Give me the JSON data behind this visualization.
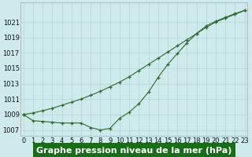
{
  "line1_x": [
    0,
    1,
    2,
    3,
    4,
    5,
    6,
    7,
    8,
    9,
    10,
    11,
    12,
    13,
    14,
    15,
    16,
    17,
    18,
    19,
    20,
    21,
    22,
    23
  ],
  "line1_y": [
    1009.0,
    1009.2,
    1009.5,
    1009.8,
    1010.2,
    1010.6,
    1011.0,
    1011.5,
    1012.0,
    1012.6,
    1013.2,
    1013.9,
    1014.7,
    1015.5,
    1016.3,
    1017.1,
    1017.9,
    1018.7,
    1019.5,
    1020.3,
    1021.0,
    1021.5,
    1022.0,
    1022.5
  ],
  "line2_x": [
    0,
    1,
    2,
    3,
    4,
    5,
    6,
    7,
    8,
    9,
    10,
    11,
    12,
    13,
    14,
    15,
    16,
    17,
    18,
    19,
    20,
    21,
    22,
    23
  ],
  "line2_y": [
    1009.0,
    1008.2,
    1008.1,
    1008.0,
    1007.9,
    1007.9,
    1007.9,
    1007.3,
    1007.0,
    1007.2,
    1008.5,
    1009.3,
    1010.4,
    1011.9,
    1013.8,
    1015.5,
    1016.9,
    1018.3,
    1019.5,
    1020.5,
    1021.1,
    1021.6,
    1022.1,
    1022.5
  ],
  "line_color": "#2d6a2d",
  "bg_color": "#ceeaec",
  "grid_color": "#b8d8d8",
  "xlabel": "Graphe pression niveau de la mer (hPa)",
  "xlabel_bg": "#1a6b1a",
  "xlabel_color": "#ffffff",
  "ylabel_ticks": [
    1007,
    1009,
    1011,
    1013,
    1015,
    1017,
    1019,
    1021
  ],
  "xticks": [
    0,
    1,
    2,
    3,
    4,
    5,
    6,
    7,
    8,
    9,
    10,
    11,
    12,
    13,
    14,
    15,
    16,
    17,
    18,
    19,
    20,
    21,
    22,
    23
  ],
  "ylim": [
    1006.2,
    1023.5
  ],
  "xlim": [
    -0.3,
    23.3
  ],
  "tick_fontsize": 6.0,
  "xlabel_fontsize": 8.0
}
